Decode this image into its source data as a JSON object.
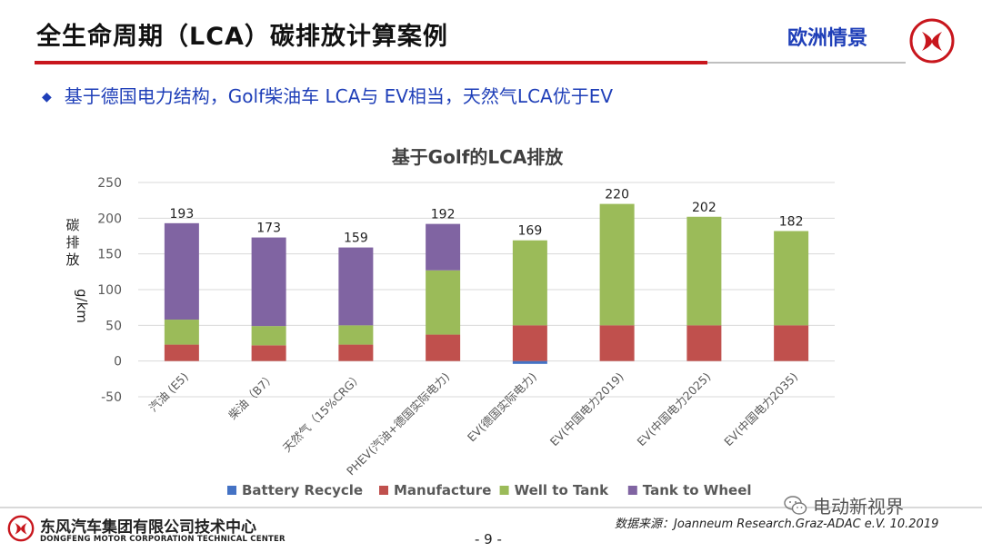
{
  "header": {
    "title": "全生命周期（LCA）碳排放计算案例",
    "region": "欧洲情景"
  },
  "subtitle": "基于德国电力结构，Golf柴油车 LCA与 EV相当，天然气LCA优于EV",
  "chart_data": {
    "type": "bar",
    "stacked": true,
    "title": "基于Golf的LCA排放",
    "ylabel": "碳排放g/km",
    "xlabel": "",
    "ylim": [
      -50,
      250
    ],
    "yticks": [
      250,
      200,
      150,
      100,
      50,
      0,
      -50
    ],
    "grid": true,
    "legend_position": "bottom",
    "categories": [
      "汽油 (E5)",
      "柴油（B7）",
      "天然气（15%CRG）",
      "PHEV(汽油+德国实际电力)",
      "EV(德国实际电力)",
      "EV(中国电力2019)",
      "EV(中国电力2025)",
      "EV(中国电力2035)"
    ],
    "series": [
      {
        "name": "Battery Recycle",
        "color": "#4472c4",
        "values": [
          0,
          0,
          0,
          0,
          -4,
          0,
          0,
          0
        ]
      },
      {
        "name": "Manufacture",
        "color": "#c0504d",
        "values": [
          23,
          22,
          23,
          37,
          50,
          50,
          50,
          50
        ]
      },
      {
        "name": "Well to Tank",
        "color": "#9bbb59",
        "values": [
          35,
          27,
          27,
          90,
          119,
          170,
          152,
          132
        ]
      },
      {
        "name": "Tank to Wheel",
        "color": "#8064a2",
        "values": [
          135,
          124,
          109,
          65,
          0,
          0,
          0,
          0
        ]
      }
    ],
    "totals": [
      193,
      173,
      159,
      192,
      169,
      220,
      202,
      182
    ]
  },
  "footer": {
    "company_cn": "东风汽车集团有限公司技术中心",
    "company_en": "DONGFENG MOTOR CORPORATION TECHNICAL CENTER",
    "page": "- 9 -",
    "source": "数据来源：Joanneum Research.Graz-ADAC e.V. 10.2019",
    "watermark": "电动新视界"
  },
  "colors": {
    "brand_red": "#c8161d",
    "accent_blue": "#1f3fb8"
  },
  "icons": {
    "logo": "dongfeng-logo-icon",
    "bullet": "diamond-bullet-icon",
    "watermark": "wechat-icon"
  }
}
